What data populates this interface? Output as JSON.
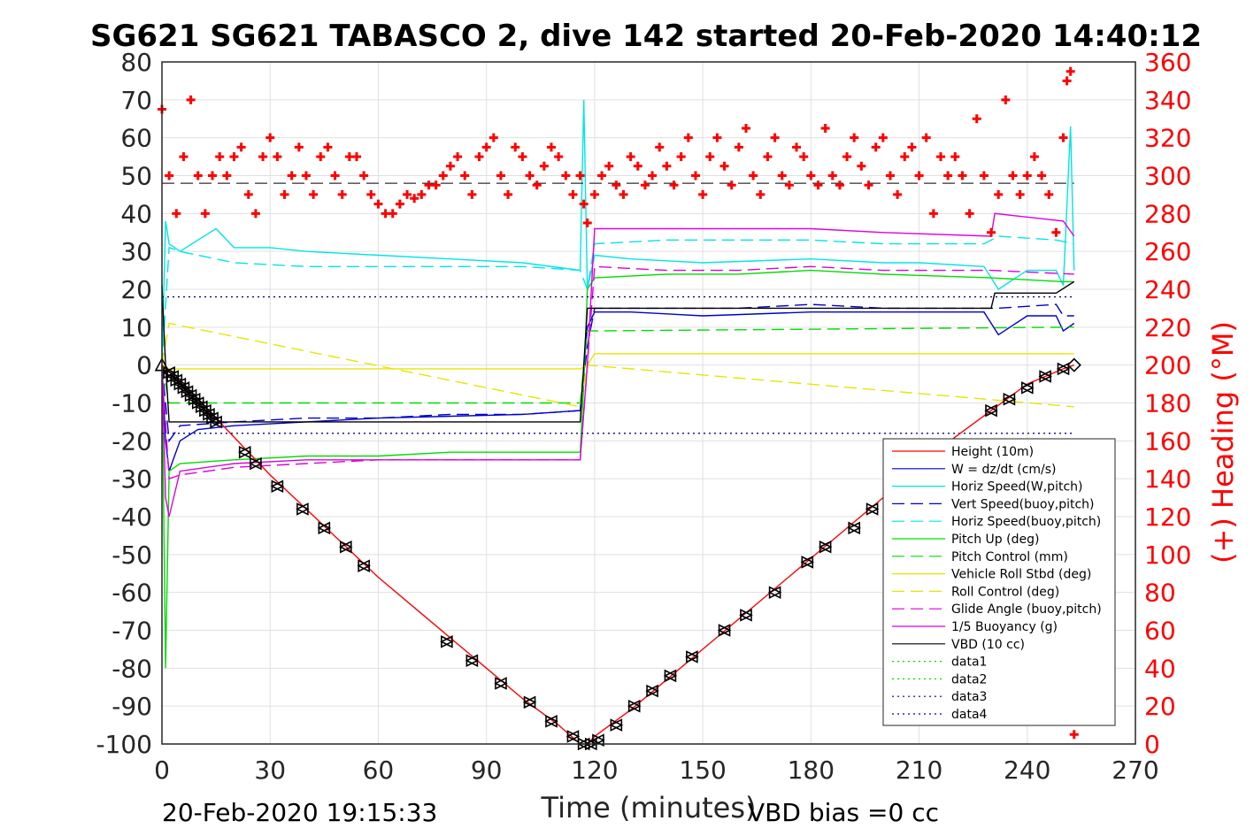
{
  "chart_data": {
    "type": "line",
    "title": "SG621 SG621 TABASCO 2, dive 142 started 20-Feb-2020 14:40:12",
    "xlabel": "Time (minutes)",
    "ylabel": "",
    "y2label": "(+) Heading (°M)",
    "xlim": [
      0,
      270
    ],
    "ylim": [
      -100,
      80
    ],
    "y2lim": [
      0,
      360
    ],
    "xticks": [
      "0",
      "30",
      "60",
      "90",
      "120",
      "150",
      "180",
      "210",
      "240",
      "270"
    ],
    "yticks": [
      "80",
      "70",
      "60",
      "50",
      "40",
      "30",
      "20",
      "10",
      "0",
      "-10",
      "-20",
      "-30",
      "-40",
      "-50",
      "-60",
      "-70",
      "-80",
      "-90",
      "-100"
    ],
    "y2ticks": [
      "360",
      "340",
      "320",
      "300",
      "280",
      "260",
      "240",
      "220",
      "200",
      "180",
      "160",
      "140",
      "120",
      "100",
      "80",
      "60",
      "40",
      "20",
      "0"
    ],
    "grid": true,
    "legend_position": "bottom-right",
    "footer_left": "20-Feb-2020 19:15:33",
    "footer_right": "VBD bias =0 cc",
    "colors": {
      "red": "#ff0000",
      "blue": "#0000cc",
      "cyan": "#00e5e5",
      "green": "#00dd00",
      "yellow": "#e6e600",
      "magenta": "#dd00dd",
      "black": "#000000",
      "navy": "#000099"
    },
    "series": [
      {
        "name": "Height (10m)",
        "color": "#ff0000",
        "style": "solid",
        "x": [
          0,
          10,
          20,
          30,
          40,
          50,
          60,
          70,
          80,
          90,
          100,
          110,
          116,
          118,
          120,
          130,
          140,
          150,
          160,
          170,
          180,
          190,
          200,
          210,
          220,
          230,
          240,
          250,
          253
        ],
        "y": [
          0,
          -9,
          -19,
          -29,
          -38,
          -47,
          -56,
          -64,
          -72,
          -80,
          -88,
          -95,
          -100,
          -100,
          -98,
          -91,
          -83,
          -75,
          -67,
          -59,
          -51,
          -43,
          -35,
          -27,
          -19,
          -12,
          -5,
          -1,
          0
        ]
      },
      {
        "name": "W = dz/dt (cm/s)",
        "color": "#0000cc",
        "style": "solid",
        "x": [
          0,
          1,
          2,
          5,
          10,
          20,
          40,
          60,
          80,
          100,
          116,
          117,
          118,
          120,
          130,
          150,
          180,
          210,
          228,
          232,
          240,
          248,
          250,
          253
        ],
        "y": [
          0,
          -20,
          -28,
          -20,
          -17,
          -16,
          -15,
          -14,
          -13.5,
          -13,
          -12,
          -1,
          10,
          14,
          14,
          13,
          14,
          14,
          14,
          8,
          13,
          13,
          9,
          11
        ]
      },
      {
        "name": "Horiz Speed(W,pitch)",
        "color": "#00e5e5",
        "style": "solid",
        "x": [
          0,
          1,
          2,
          5,
          10,
          15,
          20,
          30,
          40,
          60,
          80,
          100,
          116,
          117,
          118,
          120,
          130,
          150,
          180,
          200,
          210,
          228,
          232,
          240,
          248,
          250,
          252,
          253
        ],
        "y": [
          0,
          38,
          32,
          30,
          33,
          36,
          31,
          31,
          30,
          29,
          28,
          27,
          25,
          70,
          20,
          29,
          28,
          27,
          28,
          27,
          27,
          26,
          20,
          25,
          25,
          21,
          63,
          25
        ]
      },
      {
        "name": "Vert Speed(buoy,pitch)",
        "color": "#0000cc",
        "style": "dash",
        "x": [
          0,
          2,
          5,
          20,
          40,
          60,
          80,
          100,
          116,
          118,
          120,
          140,
          160,
          180,
          200,
          228,
          232,
          248,
          250,
          253
        ],
        "y": [
          0,
          -20,
          -16,
          -15,
          -14,
          -14,
          -13,
          -13,
          -12,
          5,
          15,
          15,
          15,
          16,
          15,
          15,
          15,
          16,
          13,
          13
        ]
      },
      {
        "name": "Horiz Speed(buoy,pitch)",
        "color": "#00e5e5",
        "style": "dash",
        "x": [
          0,
          2,
          5,
          20,
          40,
          60,
          80,
          100,
          116,
          118,
          120,
          140,
          160,
          180,
          200,
          228,
          232,
          248,
          253
        ],
        "y": [
          0,
          31,
          30,
          27,
          26,
          26,
          26,
          26,
          25,
          20,
          32,
          33,
          33,
          33,
          32,
          32,
          34,
          33,
          32
        ]
      },
      {
        "name": "Pitch Up (deg)",
        "color": "#00dd00",
        "style": "solid",
        "x": [
          0,
          1,
          2,
          5,
          20,
          40,
          60,
          80,
          100,
          116,
          117,
          118,
          120,
          140,
          160,
          180,
          200,
          230,
          250,
          253
        ],
        "y": [
          0,
          -80,
          -28,
          -26,
          -25,
          -24,
          -24,
          -23,
          -23,
          -23,
          -5,
          20,
          23,
          24,
          24,
          25,
          24,
          23,
          22,
          22
        ]
      },
      {
        "name": "Pitch Control (mm)",
        "color": "#00dd00",
        "style": "dash",
        "x": [
          0,
          2,
          116,
          118,
          253
        ],
        "y": [
          0,
          -10,
          -10,
          9,
          10
        ]
      },
      {
        "name": "Vehicle Roll Stbd (deg)",
        "color": "#e6e600",
        "style": "solid",
        "x": [
          0,
          2,
          20,
          40,
          60,
          80,
          100,
          116,
          118,
          120,
          140,
          160,
          180,
          200,
          220,
          240,
          253
        ],
        "y": [
          0,
          -1,
          -1,
          -1,
          -1,
          -1,
          -1,
          -1,
          0,
          3,
          3,
          3,
          3,
          3,
          3,
          3,
          3
        ]
      },
      {
        "name": "Roll Control (deg)",
        "color": "#e6e600",
        "style": "dash",
        "x": [
          0,
          2,
          116,
          118,
          253
        ],
        "y": [
          0,
          11,
          -11,
          0,
          -11
        ]
      },
      {
        "name": "Glide Angle (buoy,pitch)",
        "color": "#dd00dd",
        "style": "dash",
        "x": [
          0,
          2,
          5,
          20,
          40,
          60,
          80,
          100,
          116,
          118,
          120,
          140,
          160,
          180,
          200,
          230,
          253
        ],
        "y": [
          0,
          -30,
          -29,
          -27,
          -26,
          -25,
          -25,
          -25,
          -25,
          0,
          26,
          25,
          25,
          26,
          25,
          25,
          24
        ]
      },
      {
        "name": "1/5 Buoyancy (g)",
        "color": "#dd00dd",
        "style": "solid",
        "x": [
          0,
          1,
          2,
          5,
          20,
          40,
          60,
          80,
          100,
          116,
          118,
          120,
          140,
          160,
          180,
          200,
          230,
          231,
          250,
          253
        ],
        "y": [
          0,
          -35,
          -40,
          -28,
          -26,
          -25,
          -25,
          -25,
          -25,
          -25,
          0,
          36,
          36,
          36,
          36,
          35,
          34,
          40,
          38,
          34
        ]
      },
      {
        "name": "VBD (10 cc)",
        "color": "#000000",
        "style": "solid",
        "x": [
          0,
          1,
          2,
          116,
          118,
          230,
          231,
          240,
          248,
          253
        ],
        "y": [
          21,
          0,
          -15,
          -15,
          15,
          15,
          19,
          19,
          19,
          22
        ]
      },
      {
        "name": "data1",
        "color": "#00dd00",
        "style": "dot",
        "x": [],
        "y": []
      },
      {
        "name": "data2",
        "color": "#00dd00",
        "style": "dot",
        "x": [],
        "y": []
      },
      {
        "name": "data3",
        "color": "#000099",
        "style": "dot",
        "x": [
          0,
          253
        ],
        "y": [
          18,
          18
        ]
      },
      {
        "name": "data4",
        "color": "#000099",
        "style": "dot",
        "x": [
          0,
          253
        ],
        "y": [
          -18,
          -18
        ]
      }
    ],
    "heading_reference": {
      "color": "#000000",
      "style": "dash",
      "x": [
        0,
        253
      ],
      "y": [
        48,
        48
      ]
    },
    "heading": {
      "name": "(+) Heading (°M)",
      "color": "#ff0000",
      "axis": "right",
      "x": [
        0,
        2,
        4,
        6,
        8,
        10,
        12,
        14,
        16,
        18,
        20,
        22,
        24,
        26,
        28,
        30,
        32,
        34,
        36,
        38,
        40,
        42,
        44,
        46,
        48,
        50,
        52,
        54,
        56,
        58,
        60,
        62,
        64,
        66,
        68,
        70,
        72,
        74,
        76,
        78,
        80,
        82,
        84,
        86,
        88,
        90,
        92,
        94,
        96,
        98,
        100,
        102,
        104,
        106,
        108,
        110,
        112,
        114,
        116,
        117,
        118,
        120,
        122,
        124,
        126,
        128,
        130,
        132,
        134,
        136,
        138,
        140,
        142,
        144,
        146,
        148,
        150,
        152,
        154,
        156,
        158,
        160,
        162,
        164,
        166,
        168,
        170,
        172,
        174,
        176,
        178,
        180,
        182,
        184,
        186,
        188,
        190,
        192,
        194,
        196,
        198,
        200,
        202,
        204,
        206,
        208,
        210,
        212,
        214,
        216,
        218,
        220,
        222,
        224,
        226,
        228,
        230,
        232,
        234,
        236,
        238,
        240,
        242,
        244,
        246,
        248,
        250,
        251,
        252,
        253
      ],
      "y": [
        335,
        300,
        280,
        310,
        340,
        300,
        280,
        300,
        310,
        300,
        310,
        315,
        290,
        280,
        310,
        320,
        310,
        290,
        300,
        315,
        300,
        290,
        310,
        315,
        300,
        290,
        310,
        310,
        300,
        290,
        285,
        280,
        280,
        285,
        290,
        288,
        290,
        295,
        295,
        300,
        305,
        310,
        300,
        290,
        310,
        315,
        320,
        300,
        290,
        315,
        310,
        300,
        295,
        305,
        315,
        310,
        300,
        290,
        300,
        285,
        275,
        290,
        300,
        305,
        295,
        290,
        310,
        305,
        295,
        300,
        315,
        305,
        295,
        310,
        320,
        300,
        290,
        310,
        320,
        305,
        295,
        315,
        325,
        300,
        290,
        310,
        320,
        300,
        295,
        315,
        310,
        300,
        295,
        325,
        300,
        295,
        310,
        320,
        305,
        295,
        315,
        320,
        300,
        290,
        310,
        315,
        300,
        320,
        280,
        310,
        300,
        310,
        300,
        280,
        330,
        300,
        270,
        290,
        340,
        300,
        290,
        300,
        310,
        300,
        290,
        270,
        320,
        350,
        355,
        5
      ]
    },
    "markers": {
      "color": "#000000",
      "x": [
        0,
        2,
        3,
        4,
        5,
        6,
        7,
        8,
        9,
        10,
        11,
        12,
        13,
        14,
        15,
        23,
        26,
        32,
        39,
        45,
        51,
        56,
        79,
        86,
        94,
        102,
        108,
        114,
        117,
        119,
        121,
        126,
        131,
        136,
        141,
        147,
        156,
        162,
        170,
        179,
        184,
        192,
        197,
        230,
        235,
        240,
        245,
        250,
        253
      ],
      "y": [
        0,
        -2,
        -3,
        -4,
        -5,
        -6,
        -7,
        -8,
        -9,
        -10,
        -11,
        -12,
        -13,
        -14,
        -15,
        -23,
        -26,
        -32,
        -38,
        -43,
        -48,
        -53,
        -73,
        -78,
        -84,
        -89,
        -94,
        -98,
        -100,
        -100,
        -99,
        -95,
        -90,
        -86,
        -82,
        -77,
        -70,
        -66,
        -60,
        -52,
        -48,
        -43,
        -38,
        -12,
        -9,
        -6,
        -3,
        -1,
        0
      ]
    }
  }
}
